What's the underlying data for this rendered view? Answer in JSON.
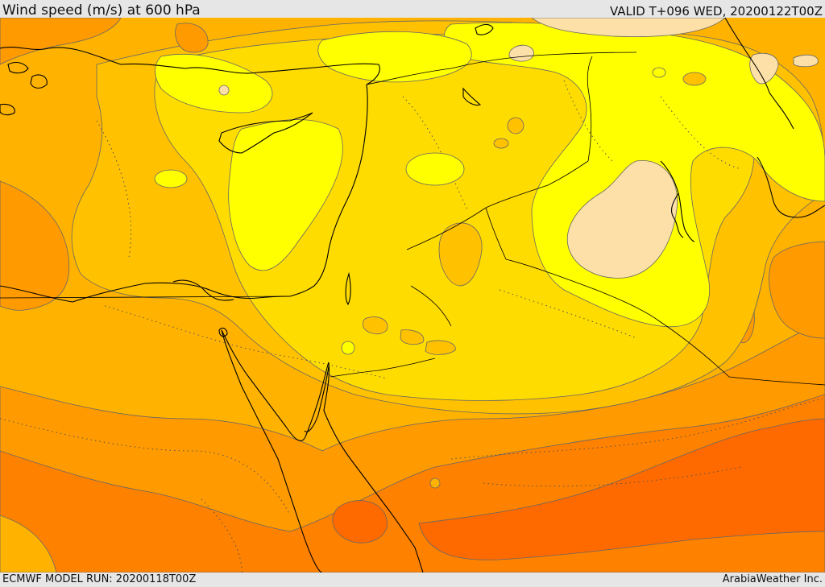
{
  "header": {
    "title": "Wind speed (m/s) at 600 hPa",
    "valid": "VALID T+096 WED, 20200122T00Z"
  },
  "footer": {
    "model_run": "ECMWF MODEL RUN: 20200118T00Z",
    "credit": "ArabiaWeather Inc."
  },
  "colors": {
    "band_0": "#ffb300",
    "band_1": "#ffc100",
    "band_2": "#ffdc00",
    "band_3": "#ffff00",
    "band_4": "#fde0a8",
    "band_5": "#ff9a00",
    "band_6": "#ff8100",
    "band_7": "#ff6a00",
    "coastline": "#000000",
    "contour": "#444444"
  }
}
